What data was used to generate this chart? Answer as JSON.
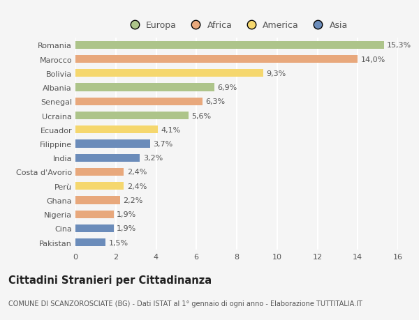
{
  "countries": [
    "Romania",
    "Marocco",
    "Bolivia",
    "Albania",
    "Senegal",
    "Ucraina",
    "Ecuador",
    "Filippine",
    "India",
    "Costa d'Avorio",
    "Perù",
    "Ghana",
    "Nigeria",
    "Cina",
    "Pakistan"
  ],
  "values": [
    15.3,
    14.0,
    9.3,
    6.9,
    6.3,
    5.6,
    4.1,
    3.7,
    3.2,
    2.4,
    2.4,
    2.2,
    1.9,
    1.9,
    1.5
  ],
  "labels": [
    "15,3%",
    "14,0%",
    "9,3%",
    "6,9%",
    "6,3%",
    "5,6%",
    "4,1%",
    "3,7%",
    "3,2%",
    "2,4%",
    "2,4%",
    "2,2%",
    "1,9%",
    "1,9%",
    "1,5%"
  ],
  "continents": [
    "Europa",
    "Africa",
    "America",
    "Europa",
    "Africa",
    "Europa",
    "America",
    "Asia",
    "Asia",
    "Africa",
    "America",
    "Africa",
    "Africa",
    "Asia",
    "Asia"
  ],
  "colors": {
    "Europa": "#adc48a",
    "Africa": "#e8a87c",
    "America": "#f5d76e",
    "Asia": "#6b8cba"
  },
  "legend_order": [
    "Europa",
    "Africa",
    "America",
    "Asia"
  ],
  "title": "Cittadini Stranieri per Cittadinanza",
  "subtitle": "COMUNE DI SCANZOROSCIATE (BG) - Dati ISTAT al 1° gennaio di ogni anno - Elaborazione TUTTITALIA.IT",
  "xlim": [
    0,
    16
  ],
  "xticks": [
    0,
    2,
    4,
    6,
    8,
    10,
    12,
    14,
    16
  ],
  "background_color": "#f5f5f5",
  "bar_height": 0.55,
  "grid_color": "#ffffff",
  "label_fontsize": 8,
  "tick_fontsize": 8,
  "ytick_fontsize": 8,
  "title_fontsize": 10.5,
  "subtitle_fontsize": 7
}
